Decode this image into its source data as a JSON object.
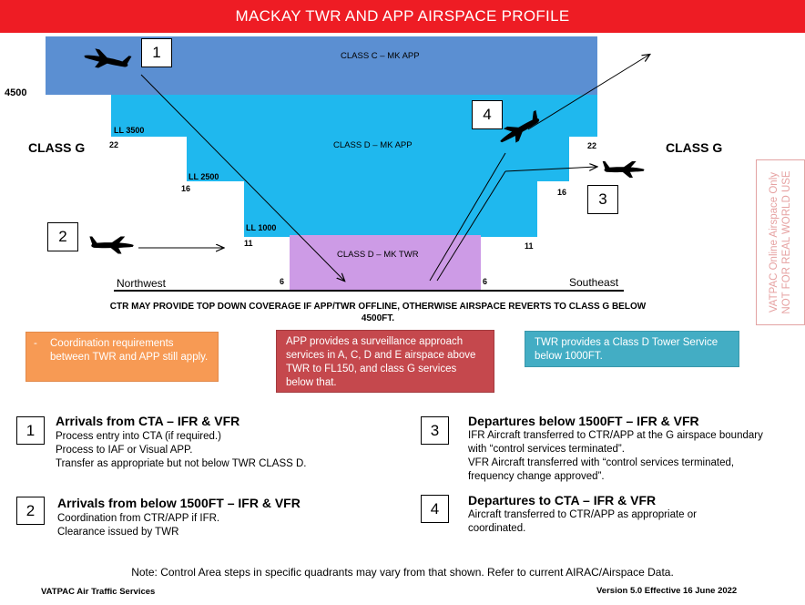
{
  "title": "MACKAY TWR AND APP AIRSPACE PROFILE",
  "colors": {
    "banner": "#ee1c24",
    "class_c": "#5b8fd2",
    "class_d_app": "#1fb8ee",
    "class_d_twr": "#cd9be6",
    "orange_box": "#f79a54",
    "red_box": "#c5484d",
    "teal_box": "#43adc4"
  },
  "diagram": {
    "altitude_4500": "4500",
    "class_c_label": "CLASS C – MK APP",
    "class_d_app_label": "CLASS D – MK APP",
    "class_d_twr_label": "CLASS D – MK TWR",
    "class_g_left": "CLASS G",
    "class_g_right": "CLASS G",
    "ll_3500": "LL 3500",
    "ll_2500": "LL 2500",
    "ll_1000": "LL 1000",
    "dist_22_left": "22",
    "dist_22_right": "22",
    "dist_16_left": "16",
    "dist_16_right": "16",
    "dist_11_left": "11",
    "dist_11_right": "11",
    "dist_6_left": "6",
    "dist_6_right": "6",
    "northwest": "Northwest",
    "southeast": "Southeast",
    "marker_1": "1",
    "marker_2": "2",
    "marker_3": "3",
    "marker_4": "4",
    "icons": [
      "aircraft-icon",
      "arrow-icon"
    ]
  },
  "ctr_note": "CTR MAY PROVIDE TOP DOWN COVERAGE IF APP/TWR OFFLINE, OTHERWISE AIRSPACE REVERTS TO CLASS G BELOW 4500FT.",
  "info_boxes": {
    "coordination_bullet": "-",
    "coordination": "Coordination requirements between TWR and APP still apply.",
    "app": "APP provides a surveillance approach services in A, C, D and E airspace above TWR to FL150, and class G services below that.",
    "twr": "TWR provides a Class D Tower Service below 1000FT."
  },
  "legend": [
    {
      "number": "1",
      "title": "Arrivals from CTA – IFR & VFR",
      "text": "Process entry into CTA (if required.)\nProcess to IAF or Visual APP.\nTransfer as appropriate but not below TWR CLASS D."
    },
    {
      "number": "2",
      "title": "Arrivals from below 1500FT – IFR & VFR",
      "text": "Coordination from CTR/APP if IFR.\nClearance issued by TWR"
    },
    {
      "number": "3",
      "title": "Departures below 1500FT – IFR & VFR",
      "text": "IFR Aircraft transferred to  CTR/APP at the G airspace boundary\nwith “control services terminated”.\nVFR Aircraft transferred with “control services terminated,\nfrequency change approved”."
    },
    {
      "number": "4",
      "title": "Departures to CTA – IFR & VFR",
      "text": "Aircraft transferred to CTR/APP as appropriate or\ncoordinated."
    }
  ],
  "watermark": {
    "line1": "VATPAC Online Airspace Only",
    "line2": "NOT FOR REAL WORLD USE"
  },
  "note": "Note: Control Area steps in specific quadrants may vary from that shown. Refer to current AIRAC/Airspace Data.",
  "footer_left": "VATPAC Air Traffic Services",
  "footer_right": "Version 5.0 Effective 16 June 2022"
}
